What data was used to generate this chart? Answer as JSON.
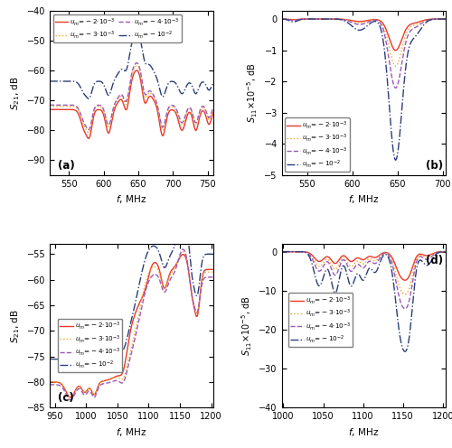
{
  "colors": [
    "#e8392a",
    "#f5a623",
    "#9b59b6",
    "#2c3e7a"
  ],
  "linestyles": [
    "-",
    ":",
    "--",
    "-."
  ],
  "linewidths": [
    1.0,
    1.0,
    1.0,
    1.0
  ],
  "keys": [
    "red",
    "orange",
    "purple",
    "dark_blue"
  ],
  "legend_labels": [
    "$u_m\\!=\\!-2{\\cdot}10^{-3}$",
    "$u_m\\!=\\!-3{\\cdot}10^{-3}$",
    "$u_m\\!=\\!-4{\\cdot}10^{-3}$",
    "$u_m\\!=\\!-10^{-2}$"
  ]
}
